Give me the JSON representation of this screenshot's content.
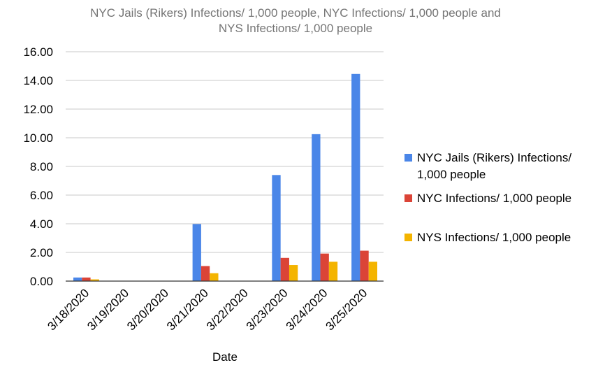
{
  "chart_data": {
    "type": "bar",
    "title_lines": [
      "NYC Jails (Rikers) Infections/ 1,000 people, NYC Infections/ 1,000 people and",
      "NYS Infections/ 1,000 people"
    ],
    "xlabel": "Date",
    "ylabel": "",
    "ylim": [
      0,
      16
    ],
    "y_ticks": [
      "0.00",
      "2.00",
      "4.00",
      "6.00",
      "8.00",
      "10.00",
      "12.00",
      "14.00",
      "16.00"
    ],
    "grid": true,
    "legend_position": "right",
    "categories": [
      "3/18/2020",
      "3/19/2020",
      "3/20/2020",
      "3/21/2020",
      "3/22/2020",
      "3/23/2020",
      "3/24/2020",
      "3/25/2020"
    ],
    "series": [
      {
        "name": "NYC Jails (Rikers) Infections/ 1,000 people",
        "legend_lines": [
          "NYC Jails (Rikers) Infections/",
          "1,000 people"
        ],
        "color": "#4a86e8",
        "values": [
          0.25,
          0,
          0,
          3.98,
          0,
          7.4,
          10.25,
          14.45
        ]
      },
      {
        "name": "NYC Infections/ 1,000 people",
        "legend_lines": [
          "NYC Infections/ 1,000 people"
        ],
        "color": "#db4437",
        "values": [
          0.25,
          0,
          0,
          1.05,
          0,
          1.62,
          1.92,
          2.12
        ]
      },
      {
        "name": "NYS Infections/ 1,000 people",
        "legend_lines": [
          "NYS Infections/ 1,000 people"
        ],
        "color": "#f4b400",
        "values": [
          0.12,
          0,
          0,
          0.55,
          0,
          1.12,
          1.35,
          1.35
        ]
      }
    ]
  }
}
